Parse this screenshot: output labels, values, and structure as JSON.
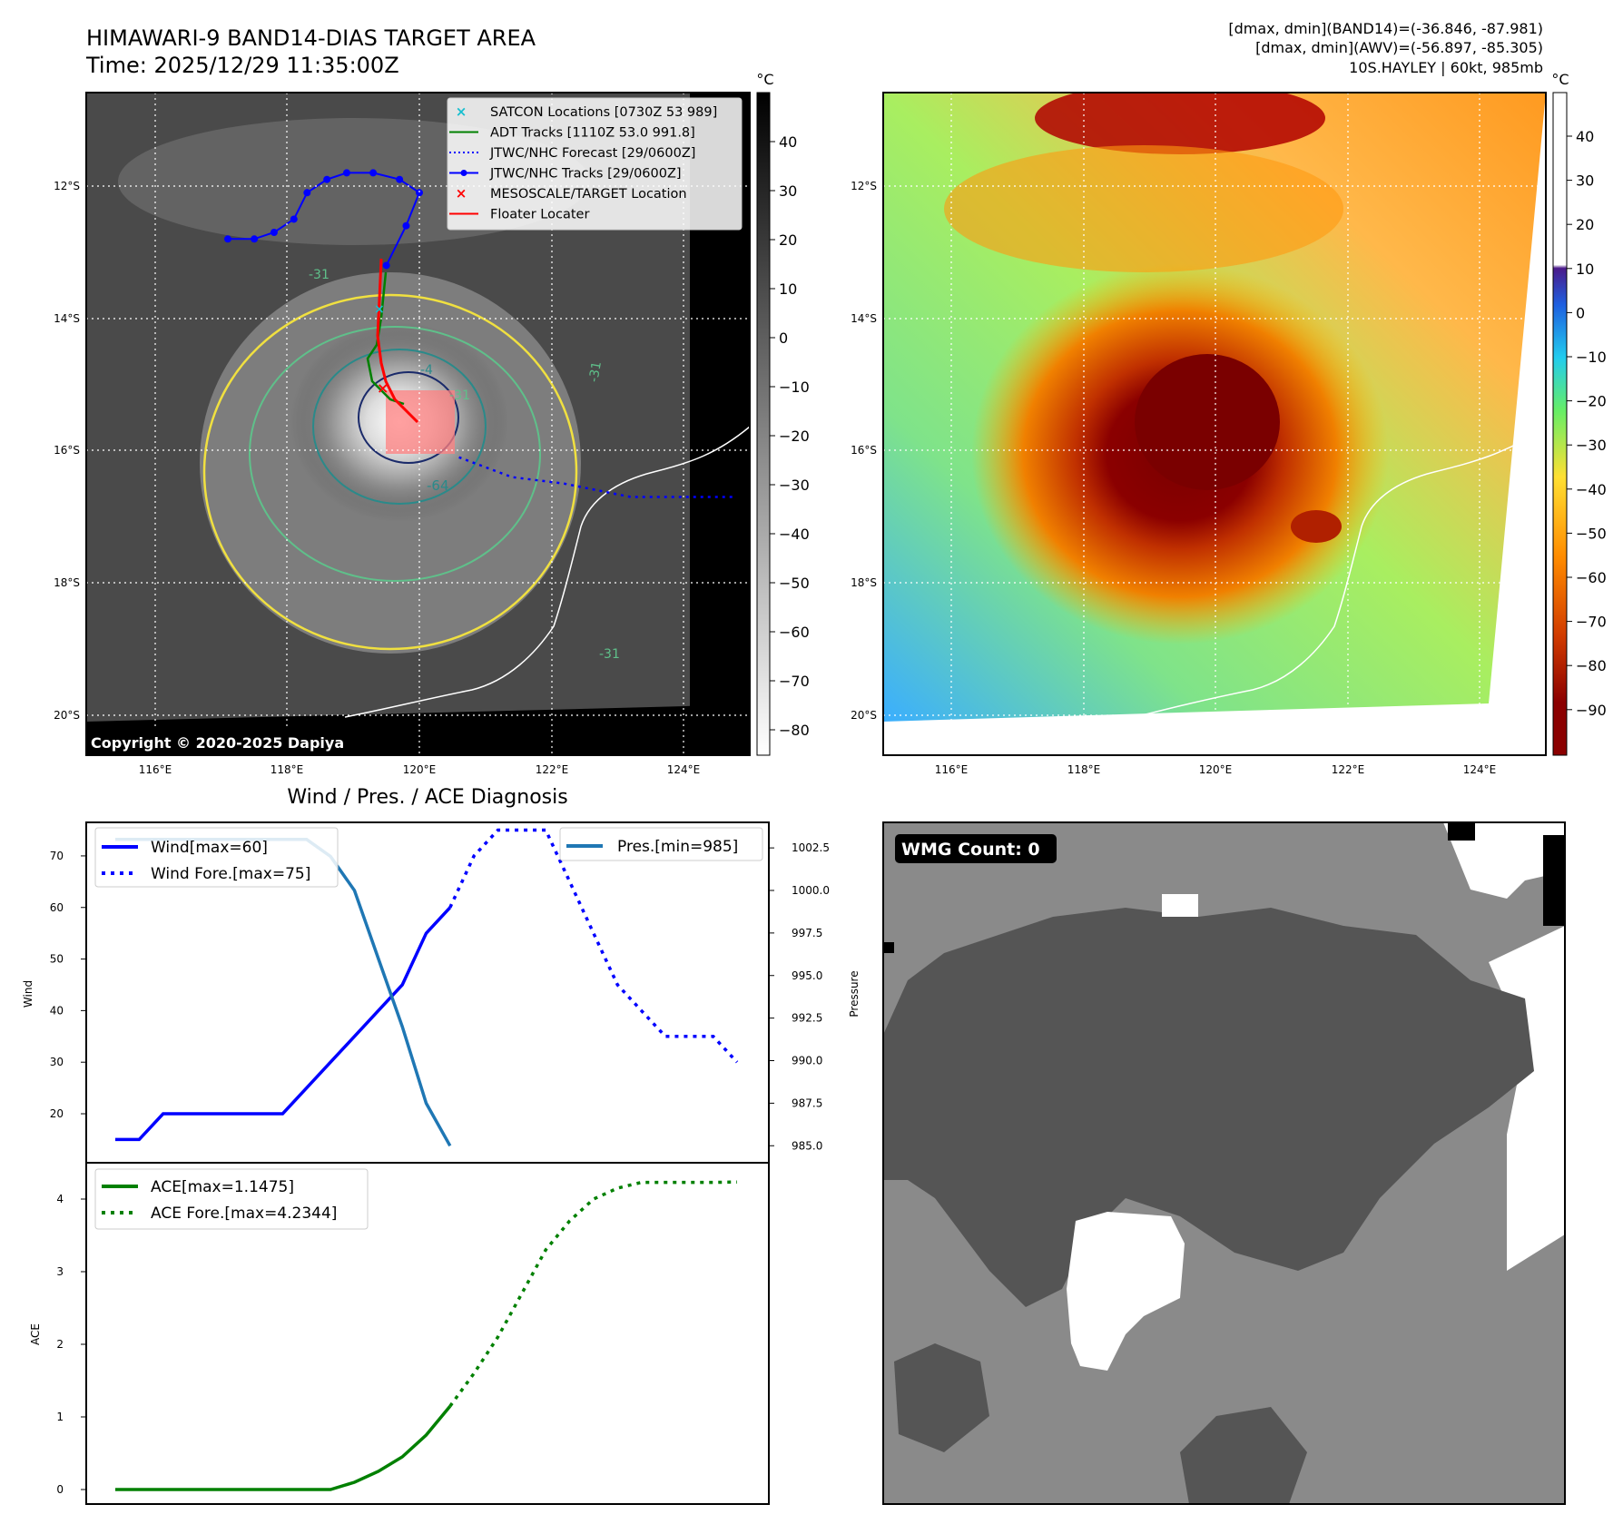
{
  "header": {
    "title_line1": "HIMAWARI-9 BAND14-DIAS TARGET AREA",
    "title_line2": "Time: 2025/12/29 11:35:00Z",
    "info_line1": "[dmax, dmin](BAND14)=(-36.846, -87.981)",
    "info_line2": "[dmax, dmin](AWV)=(-56.897, -85.305)",
    "info_line3": "10S.HAYLEY | 60kt, 985mb"
  },
  "maps": {
    "lon_ticks": [
      "116°E",
      "118°E",
      "120°E",
      "122°E",
      "124°E"
    ],
    "lat_ticks": [
      "12°S",
      "14°S",
      "16°S",
      "18°S",
      "20°S"
    ],
    "copyright": "Copyright © 2020-2025 Dapiya",
    "contour_labels": [
      "-31",
      "-64",
      "-31",
      "-31",
      "-31",
      "-4"
    ],
    "ir_colorbar": {
      "unit": "°C",
      "ticks": [
        "40",
        "30",
        "20",
        "10",
        "0",
        "−10",
        "−20",
        "−30",
        "−40",
        "−50",
        "−60",
        "−70",
        "−80"
      ]
    },
    "wv_colorbar": {
      "unit": "°C",
      "ticks": [
        "40",
        "30",
        "20",
        "10",
        "0",
        "−10",
        "−20",
        "−30",
        "−40",
        "−50",
        "−60",
        "−70",
        "−80",
        "−90"
      ]
    },
    "legend": [
      {
        "label": "SATCON Locations [0730Z 53 989]",
        "color": "#17becf",
        "marker": "x"
      },
      {
        "label": "ADT Tracks [1110Z 53.0 991.8]",
        "color": "#008000",
        "marker": "line"
      },
      {
        "label": "JTWC/NHC Forecast [29/0600Z]",
        "color": "#0000ff",
        "marker": "dotted"
      },
      {
        "label": "JTWC/NHC Tracks [29/0600Z]",
        "color": "#0000ff",
        "marker": "line-dot"
      },
      {
        "label": "MESOSCALE/TARGET Location",
        "color": "#ff0000",
        "marker": "x"
      },
      {
        "label": "Floater Locater",
        "color": "#ff0000",
        "marker": "line"
      }
    ],
    "jtwc_track": [
      [
        117.1,
        -12.8
      ],
      [
        117.5,
        -12.8
      ],
      [
        117.8,
        -12.7
      ],
      [
        118.1,
        -12.5
      ],
      [
        118.3,
        -12.1
      ],
      [
        118.6,
        -11.9
      ],
      [
        118.9,
        -11.8
      ],
      [
        119.3,
        -11.8
      ],
      [
        119.7,
        -11.9
      ],
      [
        120.0,
        -12.1
      ],
      [
        119.8,
        -12.6
      ],
      [
        119.5,
        -13.2
      ]
    ],
    "jtwc_forecast": [
      [
        120.6,
        -16.1
      ],
      [
        121.4,
        -16.4
      ],
      [
        122.2,
        -16.5
      ],
      [
        123.2,
        -16.7
      ],
      [
        124.8,
        -16.7
      ]
    ]
  },
  "wmg": {
    "label": "WMG Count: 0"
  },
  "diag": {
    "title": "Wind / Pres. / ACE Diagnosis",
    "wind_ylabel": "Wind",
    "pres_ylabel": "Pressure",
    "ace_ylabel": "ACE",
    "wind_ticks": [
      "70",
      "60",
      "50",
      "40",
      "30",
      "20"
    ],
    "pres_ticks": [
      "1002.5",
      "1000.0",
      "997.5",
      "995.0",
      "992.5",
      "990.0",
      "987.5",
      "985.0"
    ],
    "ace_ticks": [
      "4",
      "3",
      "2",
      "1",
      "0"
    ],
    "legend_wind": "Wind[max=60]",
    "legend_wind_fore": "Wind Fore.[max=75]",
    "legend_pres": "Pres.[min=985]",
    "legend_ace": "ACE[max=1.1475]",
    "legend_ace_fore": "ACE Fore.[max=4.2344]"
  },
  "chart_data": [
    {
      "type": "line",
      "title": "Wind / Pres. / ACE Diagnosis",
      "ylabel": "Wind",
      "y2label": "Pressure",
      "ylim": [
        10.5,
        76.5
      ],
      "y2lim": [
        984.0,
        1004.0
      ],
      "x": [
        0,
        1,
        2,
        3,
        4,
        5,
        6,
        7,
        8,
        9,
        10,
        11,
        12,
        13,
        14,
        15,
        16,
        17,
        18,
        19,
        20,
        21,
        22,
        23,
        24,
        25,
        26
      ],
      "series": [
        {
          "name": "Wind[max=60]",
          "axis": "left",
          "color": "#0000ff",
          "style": "solid",
          "x": [
            0,
            1,
            2,
            3,
            4,
            5,
            6,
            7,
            8,
            9,
            10,
            11,
            12,
            13,
            14
          ],
          "values": [
            15,
            15,
            20,
            20,
            20,
            20,
            20,
            20,
            25,
            30,
            35,
            40,
            45,
            55,
            60
          ]
        },
        {
          "name": "Wind Fore.[max=75]",
          "axis": "left",
          "color": "#0000ff",
          "style": "dotted",
          "x": [
            14,
            15,
            16,
            17,
            18,
            19,
            20,
            21,
            22,
            23,
            24,
            25,
            26
          ],
          "values": [
            60,
            70,
            75,
            75,
            75,
            65,
            55,
            45,
            40,
            35,
            35,
            35,
            30
          ]
        },
        {
          "name": "Pres.[min=985]",
          "axis": "right",
          "color": "#1f77b4",
          "style": "solid",
          "x": [
            0,
            1,
            2,
            3,
            4,
            5,
            6,
            7,
            8,
            9,
            10,
            11,
            12,
            13,
            14
          ],
          "values": [
            1003,
            1003,
            1003,
            1003,
            1003,
            1003,
            1003,
            1003,
            1003,
            1002,
            1000,
            996,
            992,
            987.5,
            985
          ]
        }
      ]
    },
    {
      "type": "line",
      "ylabel": "ACE",
      "ylim": [
        -0.2,
        4.5
      ],
      "x": [
        0,
        1,
        2,
        3,
        4,
        5,
        6,
        7,
        8,
        9,
        10,
        11,
        12,
        13,
        14,
        15,
        16,
        17,
        18,
        19,
        20,
        21,
        22,
        23,
        24,
        25,
        26
      ],
      "series": [
        {
          "name": "ACE[max=1.1475]",
          "color": "#008000",
          "style": "solid",
          "x": [
            0,
            1,
            2,
            3,
            4,
            5,
            6,
            7,
            8,
            9,
            10,
            11,
            12,
            13,
            14
          ],
          "values": [
            0,
            0,
            0,
            0,
            0,
            0,
            0,
            0,
            0,
            0,
            0.1,
            0.25,
            0.45,
            0.75,
            1.1475
          ]
        },
        {
          "name": "ACE Fore.[max=4.2344]",
          "color": "#008000",
          "style": "dotted",
          "x": [
            14,
            15,
            16,
            17,
            18,
            19,
            20,
            21,
            22,
            23,
            24,
            25,
            26
          ],
          "values": [
            1.1475,
            1.6,
            2.1,
            2.7,
            3.3,
            3.7,
            4.0,
            4.15,
            4.23,
            4.23,
            4.23,
            4.23,
            4.2344
          ]
        }
      ]
    }
  ]
}
